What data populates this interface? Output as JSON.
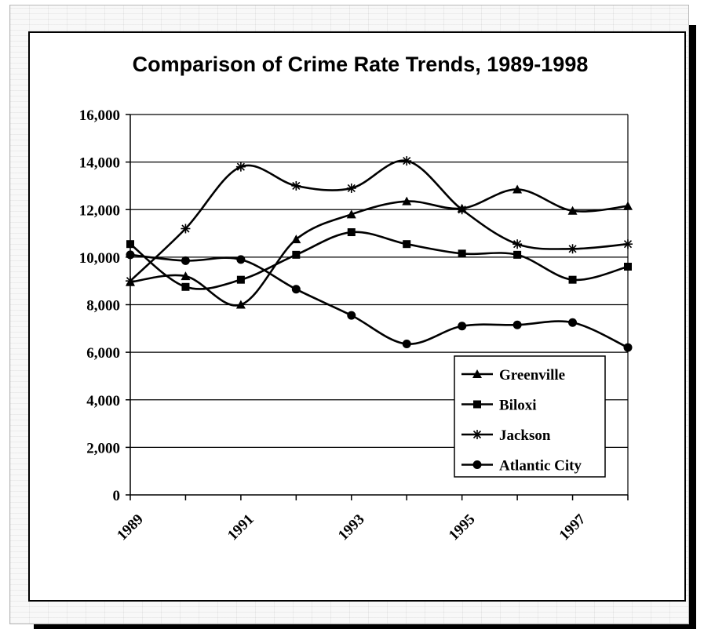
{
  "chart_data": {
    "type": "line",
    "title": "Comparison of Crime Rate Trends, 1989-1998",
    "xlabel": "",
    "ylabel": "",
    "x": [
      1989,
      1990,
      1991,
      1992,
      1993,
      1994,
      1995,
      1996,
      1997,
      1998
    ],
    "x_tick_labels": [
      "1989",
      "1991",
      "1993",
      "1995",
      "1997"
    ],
    "y_tick_labels": [
      "0",
      "2,000",
      "4,000",
      "6,000",
      "8,000",
      "10,000",
      "12,000",
      "14,000",
      "16,000"
    ],
    "ylim": [
      0,
      16000
    ],
    "grid": "horizontal",
    "smooth": true,
    "legend_position": "bottom-right",
    "series": [
      {
        "name": "Greenville",
        "marker": "triangle",
        "values": [
          8950,
          9200,
          8000,
          10750,
          11800,
          12350,
          12050,
          12850,
          11950,
          12150
        ]
      },
      {
        "name": "Biloxi",
        "marker": "square",
        "values": [
          10550,
          8750,
          9050,
          10100,
          11050,
          10550,
          10150,
          10100,
          9050,
          9600
        ]
      },
      {
        "name": "Jackson",
        "marker": "asterisk",
        "values": [
          9000,
          11200,
          13800,
          13000,
          12900,
          14050,
          12000,
          10550,
          10350,
          10550
        ]
      },
      {
        "name": "Atlantic City",
        "marker": "circle",
        "values": [
          10100,
          9850,
          9900,
          8650,
          7550,
          6350,
          7100,
          7150,
          7250,
          6200
        ]
      }
    ],
    "colors": {
      "line": "#000000",
      "grid": "#000000",
      "background": "#ffffff"
    }
  }
}
